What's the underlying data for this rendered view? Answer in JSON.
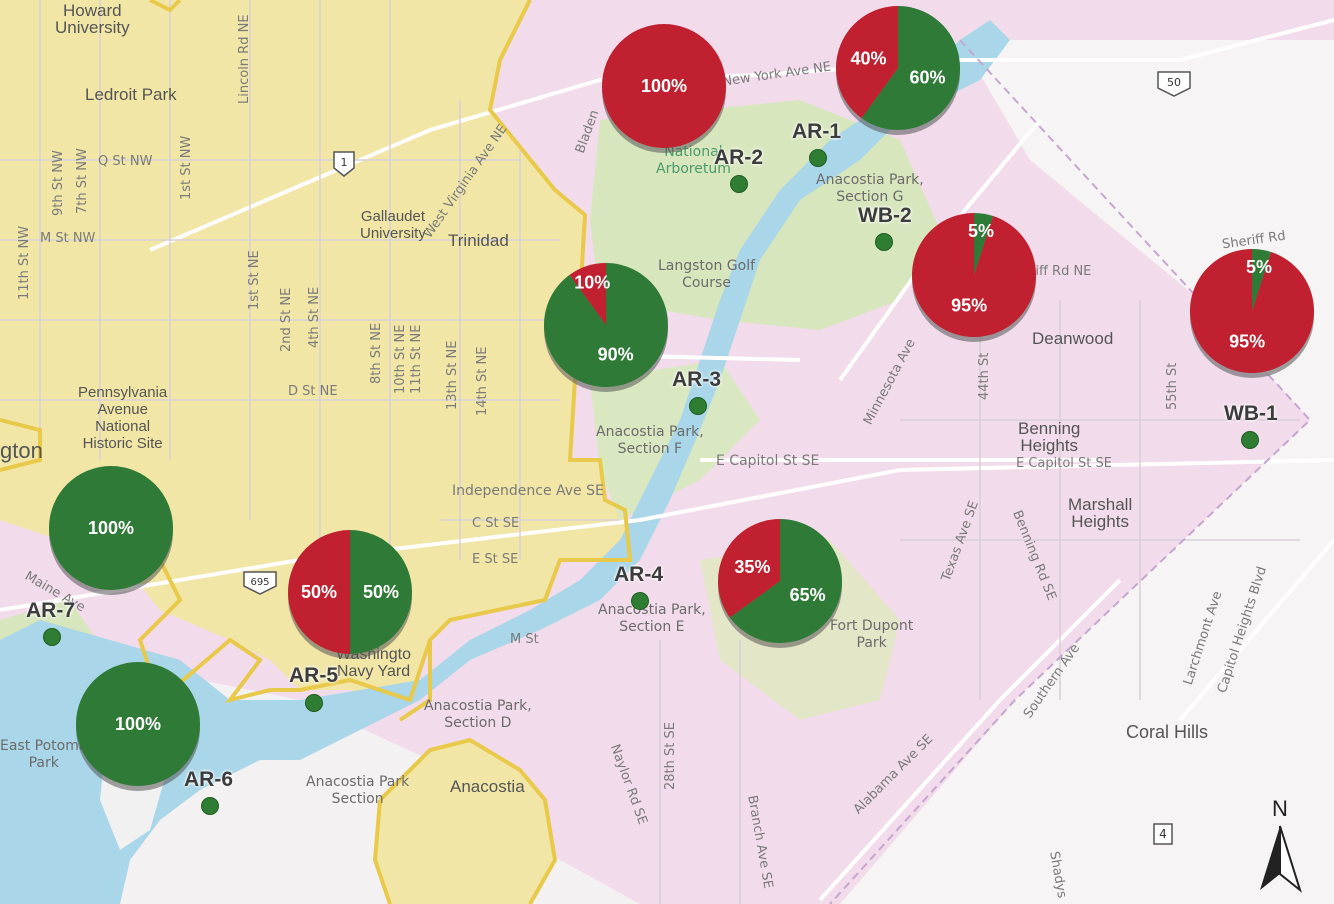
{
  "colors": {
    "red": "#c0202f",
    "green": "#2e7a36",
    "ward_yellow": "#f1e6a6",
    "ward_pink": "#f2dceb",
    "water": "#a9d6e8",
    "park": "#d7e6bd"
  },
  "sites": [
    {
      "id": "ar1",
      "label": "AR-1"
    },
    {
      "id": "ar2",
      "label": "AR-2"
    },
    {
      "id": "ar3",
      "label": "AR-3"
    },
    {
      "id": "ar4",
      "label": "AR-4"
    },
    {
      "id": "ar5",
      "label": "AR-5"
    },
    {
      "id": "ar6",
      "label": "AR-6"
    },
    {
      "id": "ar7",
      "label": "AR-7"
    },
    {
      "id": "wb1",
      "label": "WB-1"
    },
    {
      "id": "wb2",
      "label": "WB-2"
    }
  ],
  "pies": [
    {
      "id": "ar1",
      "red": 40,
      "green": 60,
      "red_label": "40%",
      "green_label": "60%"
    },
    {
      "id": "ar2",
      "red": 100,
      "green": 0,
      "red_label": "100%",
      "green_label": ""
    },
    {
      "id": "ar3",
      "red": 10,
      "green": 90,
      "red_label": "10%",
      "green_label": "90%"
    },
    {
      "id": "ar4",
      "red": 35,
      "green": 65,
      "red_label": "35%",
      "green_label": "65%"
    },
    {
      "id": "ar5",
      "red": 50,
      "green": 50,
      "red_label": "50%",
      "green_label": "50%"
    },
    {
      "id": "ar6",
      "red": 0,
      "green": 100,
      "red_label": "",
      "green_label": "100%"
    },
    {
      "id": "ar7",
      "red": 0,
      "green": 100,
      "red_label": "",
      "green_label": "100%"
    },
    {
      "id": "wb1",
      "red": 95,
      "green": 5,
      "red_label": "95%",
      "green_label": "5%"
    },
    {
      "id": "wb2",
      "red": 95,
      "green": 5,
      "red_label": "95%",
      "green_label": "5%"
    }
  ],
  "places": {
    "howard": "Howard\nUniversity",
    "ledroit": "Ledroit Park",
    "gallaudet": "Gallaudet\nUniversity",
    "trinidad": "Trinidad",
    "penn": "Pennsylvania\nAvenue\nNational\nHistoric Site",
    "washington_left": "gton",
    "arboretum": "National\nArboretum",
    "langston": "Langston Golf\nCourse",
    "anacostia_g": "Anacostia Park,\nSection G",
    "anacostia_f": "Anacostia Park,\nSection F",
    "anacostia_e": "Anacostia Park,\nSection E",
    "anacostia_d": "Anacostia Park,\nSection D",
    "anacostia_c": "Anacostia Park\nSection",
    "anacostia": "Anacostia",
    "deanwood": "Deanwood",
    "benning": "Benning\nHeights",
    "marshall": "Marshall\nHeights",
    "coral": "Coral Hills",
    "fortdupont": "Fort Dupont\nPark",
    "eastpotomac": "East Potoma\nPark",
    "navyyard": "Washingto\nNavy Yard"
  },
  "streets": {
    "qst": "Q St NW",
    "mst": "M St NW",
    "dst": "D St NE",
    "cst": "C St SE",
    "est": "E St SE",
    "ecap": "E Capitol St SE",
    "ecap2": "E Capitol St SE",
    "indep": "Independence Ave SE",
    "mst2": "M St",
    "nyave": "New York Ave NE",
    "sheriff": "Sheriff Rd",
    "sheriff2": "riff Rd NE",
    "wva": "West Virginia Ave NE",
    "bladen": "Bladen",
    "minnesota": "Minnesota Ave",
    "texas": "Texas Ave SE",
    "benningrd": "Benning Rd SE",
    "southern": "Southern Ave",
    "alabama": "Alabama Ave SE",
    "larchmont": "Larchmont Ave",
    "capheights": "Capitol Heights Blvd",
    "maine": "Maine Ave",
    "lincoln": "Lincoln Rd NE",
    "st9": "9th St NW",
    "st7": "7th St NW",
    "st1nw": "1st St NW",
    "st11": "11th St NW",
    "st1ne": "1st St NE",
    "st2ne": "2nd St NE",
    "st4ne": "4th St NE",
    "st8ne": "8th St NE",
    "st10ne": "10th St NE",
    "st11ne": "11th St NE",
    "st13ne": "13th St NE",
    "st14ne": "14th St NE",
    "st44": "44th St",
    "st55": "55th St",
    "st28": "28th St SE",
    "naylor": "Naylor Rd SE",
    "branch": "Branch Ave SE",
    "shadyside": "Shadys",
    "rt1": "1",
    "rt50": "50",
    "rt695": "695",
    "rt4": "4",
    "north": "N"
  }
}
